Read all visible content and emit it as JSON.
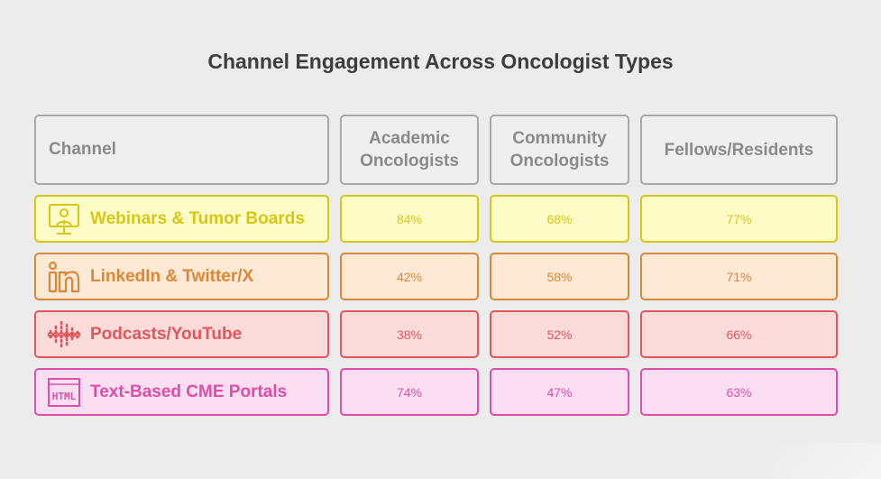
{
  "title": "Channel Engagement Across Oncologist Types",
  "header": {
    "channel": "Channel",
    "academic_line1": "Academic",
    "academic_line2": "Oncologists",
    "community_line1": "Community",
    "community_line2": "Oncologists",
    "fellows": "Fellows/Residents"
  },
  "rows": [
    {
      "label": "Webinars & Tumor Boards",
      "icon": "webinar-presenter-icon",
      "color": "#d6c717",
      "bg": "#fdfbc6",
      "values": [
        "84%",
        "68%",
        "77%"
      ]
    },
    {
      "label": "LinkedIn & Twitter/X",
      "icon": "linkedin-icon",
      "color": "#dc8736",
      "bg": "#fde9d6",
      "values": [
        "42%",
        "58%",
        "71%"
      ]
    },
    {
      "label": "Podcasts/YouTube",
      "icon": "soundwave-icon",
      "color": "#e2555b",
      "bg": "#fcdcdb",
      "values": [
        "38%",
        "52%",
        "66%"
      ]
    },
    {
      "label": "Text-Based CME Portals",
      "icon": "html-icon",
      "color": "#dc4ea8",
      "bg": "#fbdef2",
      "values": [
        "74%",
        "47%",
        "63%"
      ]
    }
  ],
  "chart_data": {
    "type": "table",
    "title": "Channel Engagement Across Oncologist Types",
    "columns": [
      "Channel",
      "Academic Oncologists",
      "Community Oncologists",
      "Fellows/Residents"
    ],
    "rows": [
      [
        "Webinars & Tumor Boards",
        "84%",
        "68%",
        "77%"
      ],
      [
        "LinkedIn & Twitter/X",
        "42%",
        "58%",
        "71%"
      ],
      [
        "Podcasts/YouTube",
        "38%",
        "52%",
        "66%"
      ],
      [
        "Text-Based CME Portals",
        "74%",
        "47%",
        "63%"
      ]
    ]
  }
}
